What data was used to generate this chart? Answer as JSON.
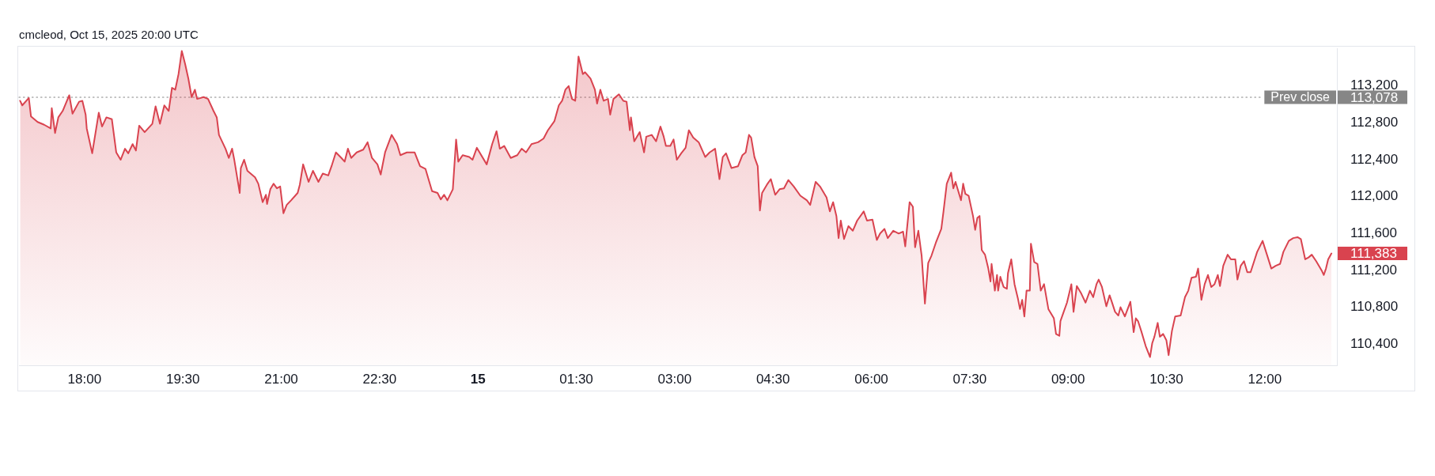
{
  "chart_data": {
    "type": "area",
    "color": "#d9434f",
    "annotations": [
      "cmcleod, Oct 15, 2025 20:00 UTC",
      "113,078",
      {
        "text": "111,383",
        "x": "2025-10-15T13:01",
        "y": 111383
      }
    ],
    "xlim": [
      "2025-10-14T17:00",
      "2025-10-15T13:06"
    ],
    "ylim": [
      110170,
      113610
    ],
    "xticks": [
      {
        "value": "2025-10-14T18:00",
        "label": "18:00"
      },
      {
        "value": "2025-10-14T19:30",
        "label": "19:30"
      },
      {
        "value": "2025-10-14T21:00",
        "label": "21:00"
      },
      {
        "value": "2025-10-14T22:30",
        "label": "22:30"
      },
      {
        "value": "2025-10-15",
        "label": "15"
      },
      {
        "value": "2025-10-15T01:30",
        "label": "01:30"
      },
      {
        "value": "2025-10-15T03:00",
        "label": "03:00"
      },
      {
        "value": "2025-10-15T04:30",
        "label": "04:30"
      },
      {
        "value": "2025-10-15T06:00",
        "label": "06:00"
      },
      {
        "value": "2025-10-15T07:30",
        "label": "07:30"
      },
      {
        "value": "2025-10-15T09:00",
        "label": "09:00"
      },
      {
        "value": "2025-10-15T10:30",
        "label": "10:30"
      },
      {
        "value": "2025-10-15T12:00",
        "label": "12:00"
      }
    ],
    "yticks": [
      {
        "value": 110400,
        "label": "110,400"
      },
      {
        "value": 110800,
        "label": "110,800"
      },
      {
        "value": 111200,
        "label": "111,200"
      },
      {
        "value": 111600,
        "label": "111,600"
      },
      {
        "value": 112000,
        "label": "112,000"
      },
      {
        "value": 112400,
        "label": "112,400"
      },
      {
        "value": 112800,
        "label": "112,800"
      },
      {
        "value": 113200,
        "label": "113,200"
      }
    ],
    "ref_lines": [
      {
        "axis": "y",
        "value": 113078,
        "label": "Prev close",
        "color": "#868686",
        "line_style": "dotted"
      }
    ],
    "x": [
      "2025-10-14T17:01",
      "2025-10-14T17:03",
      "2025-10-14T17:09",
      "2025-10-14T17:11",
      "2025-10-14T17:17",
      "2025-10-14T17:23",
      "2025-10-14T17:29",
      "2025-10-14T17:30",
      "2025-10-14T17:33",
      "2025-10-14T17:36",
      "2025-10-14T17:40",
      "2025-10-14T17:46",
      "2025-10-14T17:49",
      "2025-10-14T17:55",
      "2025-10-14T17:58",
      "2025-10-14T18:01",
      "2025-10-14T18:02",
      "2025-10-14T18:07",
      "2025-10-14T18:13",
      "2025-10-14T18:16",
      "2025-10-14T18:20",
      "2025-10-14T18:25",
      "2025-10-14T18:29",
      "2025-10-14T18:33",
      "2025-10-14T18:37",
      "2025-10-14T18:40",
      "2025-10-14T18:44",
      "2025-10-14T18:47",
      "2025-10-14T18:50",
      "2025-10-14T18:55",
      "2025-10-14T19:02",
      "2025-10-14T19:05",
      "2025-10-14T19:09",
      "2025-10-14T19:13",
      "2025-10-14T19:17",
      "2025-10-14T19:20",
      "2025-10-14T19:23",
      "2025-10-14T19:26",
      "2025-10-14T19:29",
      "2025-10-14T19:32",
      "2025-10-14T19:35",
      "2025-10-14T19:38",
      "2025-10-14T19:41",
      "2025-10-14T19:43",
      "2025-10-14T19:49",
      "2025-10-14T19:53",
      "2025-10-14T19:58",
      "2025-10-14T20:01",
      "2025-10-14T20:03",
      "2025-10-14T20:09",
      "2025-10-14T20:12",
      "2025-10-14T20:15",
      "2025-10-14T20:17",
      "2025-10-14T20:22",
      "2025-10-14T20:23",
      "2025-10-14T20:26",
      "2025-10-14T20:29",
      "2025-10-14T20:36",
      "2025-10-14T20:39",
      "2025-10-14T20:43",
      "2025-10-14T20:46",
      "2025-10-14T20:47",
      "2025-10-14T20:50",
      "2025-10-14T20:53",
      "2025-10-14T20:56",
      "2025-10-14T20:59",
      "2025-10-14T21:02",
      "2025-10-14T21:05",
      "2025-10-14T21:09",
      "2025-10-14T21:15",
      "2025-10-14T21:17",
      "2025-10-14T21:20",
      "2025-10-14T21:25",
      "2025-10-14T21:29",
      "2025-10-14T21:34",
      "2025-10-14T21:38",
      "2025-10-14T21:43",
      "2025-10-14T21:46",
      "2025-10-14T21:50",
      "2025-10-14T21:55",
      "2025-10-14T21:58",
      "2025-10-14T22:01",
      "2025-10-14T22:04",
      "2025-10-14T22:09",
      "2025-10-14T22:15",
      "2025-10-14T22:19",
      "2025-10-14T22:23",
      "2025-10-14T22:28",
      "2025-10-14T22:31",
      "2025-10-14T22:35",
      "2025-10-14T22:41",
      "2025-10-14T22:46",
      "2025-10-14T22:49",
      "2025-10-14T22:55",
      "2025-10-14T23:02",
      "2025-10-14T23:07",
      "2025-10-14T23:12",
      "2025-10-14T23:18",
      "2025-10-14T23:23",
      "2025-10-14T23:26",
      "2025-10-14T23:29",
      "2025-10-14T23:32",
      "2025-10-14T23:37",
      "2025-10-14T23:40",
      "2025-10-14T23:42",
      "2025-10-14T23:46",
      "2025-10-14T23:52",
      "2025-10-14T23:55",
      "2025-10-14T23:59",
      "2025-10-15T00:08",
      "2025-10-15T00:13",
      "2025-10-15T00:17",
      "2025-10-15T00:20",
      "2025-10-15T00:24",
      "2025-10-15T00:30",
      "2025-10-15T00:36",
      "2025-10-15T00:40",
      "2025-10-15T00:44",
      "2025-10-15T00:49",
      "2025-10-15T00:55",
      "2025-10-15T01:00",
      "2025-10-15T01:04",
      "2025-10-15T01:10",
      "2025-10-15T01:14",
      "2025-10-15T01:17",
      "2025-10-15T01:20",
      "2025-10-15T01:23",
      "2025-10-15T01:26",
      "2025-10-15T01:29",
      "2025-10-15T01:32",
      "2025-10-15T01:36",
      "2025-10-15T01:38",
      "2025-10-15T01:43",
      "2025-10-15T01:47",
      "2025-10-15T01:49",
      "2025-10-15T01:52",
      "2025-10-15T01:55",
      "2025-10-15T01:59",
      "2025-10-15T02:01",
      "2025-10-15T02:04",
      "2025-10-15T02:09",
      "2025-10-15T02:13",
      "2025-10-15T02:16",
      "2025-10-15T02:19",
      "2025-10-15T02:20",
      "2025-10-15T02:23",
      "2025-10-15T02:28",
      "2025-10-15T02:32",
      "2025-10-15T02:34",
      "2025-10-15T02:39",
      "2025-10-15T02:43",
      "2025-10-15T02:47",
      "2025-10-15T02:50",
      "2025-10-15T02:52",
      "2025-10-15T02:56",
      "2025-10-15T02:59",
      "2025-10-15T03:02",
      "2025-10-15T03:06",
      "2025-10-15T03:10",
      "2025-10-15T03:13",
      "2025-10-15T03:17",
      "2025-10-15T03:22",
      "2025-10-15T03:28",
      "2025-10-15T03:32",
      "2025-10-15T03:37",
      "2025-10-15T03:41",
      "2025-10-15T03:44",
      "2025-10-15T03:47",
      "2025-10-15T03:52",
      "2025-10-15T03:58",
      "2025-10-15T04:02",
      "2025-10-15T04:05",
      "2025-10-15T04:08",
      "2025-10-15T04:10",
      "2025-10-15T04:13",
      "2025-10-15T04:16",
      "2025-10-15T04:18",
      "2025-10-15T04:20",
      "2025-10-15T04:25",
      "2025-10-15T04:28",
      "2025-10-15T04:32",
      "2025-10-15T04:36",
      "2025-10-15T04:40",
      "2025-10-15T04:44",
      "2025-10-15T04:49",
      "2025-10-15T04:55",
      "2025-10-15T05:01",
      "2025-10-15T05:04",
      "2025-10-15T05:09",
      "2025-10-15T05:13",
      "2025-10-15T05:19",
      "2025-10-15T05:22",
      "2025-10-15T05:25",
      "2025-10-15T05:28",
      "2025-10-15T05:30",
      "2025-10-15T05:32",
      "2025-10-15T05:35",
      "2025-10-15T05:39",
      "2025-10-15T05:43",
      "2025-10-15T05:47",
      "2025-10-15T05:53",
      "2025-10-15T05:56",
      "2025-10-15T06:01",
      "2025-10-15T06:05",
      "2025-10-15T06:08",
      "2025-10-15T06:12",
      "2025-10-15T06:15",
      "2025-10-15T06:20",
      "2025-10-15T06:25",
      "2025-10-15T06:29",
      "2025-10-15T06:31",
      "2025-10-15T06:35",
      "2025-10-15T06:38",
      "2025-10-15T06:40",
      "2025-10-15T06:43",
      "2025-10-15T06:46",
      "2025-10-15T06:49",
      "2025-10-15T06:52",
      "2025-10-15T06:55",
      "2025-10-15T06:59",
      "2025-10-15T07:04",
      "2025-10-15T07:06",
      "2025-10-15T07:09",
      "2025-10-15T07:13",
      "2025-10-15T07:15",
      "2025-10-15T07:17",
      "2025-10-15T07:22",
      "2025-10-15T07:24",
      "2025-10-15T07:26",
      "2025-10-15T07:29",
      "2025-10-15T07:33",
      "2025-10-15T07:35",
      "2025-10-15T07:37",
      "2025-10-15T07:39",
      "2025-10-15T07:41",
      "2025-10-15T07:44",
      "2025-10-15T07:47",
      "2025-10-15T07:49",
      "2025-10-15T07:50",
      "2025-10-15T07:53",
      "2025-10-15T07:55",
      "2025-10-15T07:56",
      "2025-10-15T07:58",
      "2025-10-15T08:01",
      "2025-10-15T08:04",
      "2025-10-15T08:05",
      "2025-10-15T08:08",
      "2025-10-15T08:11",
      "2025-10-15T08:14",
      "2025-10-15T08:16",
      "2025-10-15T08:18",
      "2025-10-15T08:20",
      "2025-10-15T08:22",
      "2025-10-15T08:25",
      "2025-10-15T08:26",
      "2025-10-15T08:29",
      "2025-10-15T08:32",
      "2025-10-15T08:35",
      "2025-10-15T08:38",
      "2025-10-15T08:42",
      "2025-10-15T08:47",
      "2025-10-15T08:49",
      "2025-10-15T08:52",
      "2025-10-15T08:53",
      "2025-10-15T08:56",
      "2025-10-15T08:59",
      "2025-10-15T09:03",
      "2025-10-15T09:05",
      "2025-10-15T09:08",
      "2025-10-15T09:12",
      "2025-10-15T09:16",
      "2025-10-15T09:20",
      "2025-10-15T09:23",
      "2025-10-15T09:26",
      "2025-10-15T09:28",
      "2025-10-15T09:31",
      "2025-10-15T09:35",
      "2025-10-15T09:38",
      "2025-10-15T09:40",
      "2025-10-15T09:43",
      "2025-10-15T09:46",
      "2025-10-15T09:48",
      "2025-10-15T09:52",
      "2025-10-15T09:57",
      "2025-10-15T10:00",
      "2025-10-15T10:02",
      "2025-10-15T10:04",
      "2025-10-15T10:07",
      "2025-10-15T10:11",
      "2025-10-15T10:15",
      "2025-10-15T10:17",
      "2025-10-15T10:19",
      "2025-10-15T10:22",
      "2025-10-15T10:24",
      "2025-10-15T10:27",
      "2025-10-15T10:30",
      "2025-10-15T10:32",
      "2025-10-15T10:35",
      "2025-10-15T10:38",
      "2025-10-15T10:43",
      "2025-10-15T10:47",
      "2025-10-15T10:50",
      "2025-10-15T10:53",
      "2025-10-15T10:57",
      "2025-10-15T10:59",
      "2025-10-15T11:02",
      "2025-10-15T11:05",
      "2025-10-15T11:08",
      "2025-10-15T11:11",
      "2025-10-15T11:14",
      "2025-10-15T11:17",
      "2025-10-15T11:19",
      "2025-10-15T11:22",
      "2025-10-15T11:26",
      "2025-10-15T11:29",
      "2025-10-15T11:33",
      "2025-10-15T11:35",
      "2025-10-15T11:38",
      "2025-10-15T11:41",
      "2025-10-15T11:44",
      "2025-10-15T11:47",
      "2025-10-15T11:50",
      "2025-10-15T11:53",
      "2025-10-15T11:58",
      "2025-10-15T12:02",
      "2025-10-15T12:06",
      "2025-10-15T12:10",
      "2025-10-15T12:14",
      "2025-10-15T12:17",
      "2025-10-15T12:22",
      "2025-10-15T12:26",
      "2025-10-15T12:30",
      "2025-10-15T12:33",
      "2025-10-15T12:37",
      "2025-10-15T12:40",
      "2025-10-15T12:43",
      "2025-10-15T12:47",
      "2025-10-15T12:52",
      "2025-10-15T12:54",
      "2025-10-15T12:56",
      "2025-10-15T12:58",
      "2025-10-15T13:01"
    ],
    "values": [
      113040,
      112990,
      113070,
      112870,
      112810,
      112780,
      112740,
      112960,
      112690,
      112860,
      112930,
      113100,
      112900,
      113030,
      113040,
      112890,
      112740,
      112470,
      112910,
      112760,
      112860,
      112840,
      112480,
      112400,
      112520,
      112470,
      112570,
      112500,
      112770,
      112700,
      112790,
      112980,
      112790,
      112990,
      112930,
      113180,
      113160,
      113330,
      113580,
      113440,
      113280,
      113080,
      113160,
      113060,
      113080,
      113060,
      112930,
      112860,
      112670,
      112520,
      112420,
      112520,
      112400,
      112040,
      112310,
      112400,
      112280,
      112210,
      112140,
      111940,
      112020,
      111920,
      112080,
      112140,
      112090,
      112110,
      111820,
      111910,
      111960,
      112040,
      112130,
      112350,
      112160,
      112280,
      112160,
      112250,
      112230,
      112330,
      112480,
      112420,
      112380,
      112520,
      112420,
      112480,
      112510,
      112590,
      112420,
      112350,
      112240,
      112480,
      112670,
      112570,
      112450,
      112480,
      112480,
      112330,
      112300,
      112060,
      112040,
      111970,
      112020,
      111960,
      112080,
      112620,
      112380,
      112450,
      112430,
      112400,
      112530,
      112350,
      112570,
      112710,
      112520,
      112550,
      112420,
      112450,
      112520,
      112480,
      112570,
      112590,
      112630,
      112720,
      112820,
      112990,
      113040,
      113160,
      113200,
      113060,
      113040,
      113520,
      113330,
      113350,
      113280,
      113160,
      113010,
      113160,
      113040,
      113060,
      112890,
      113060,
      113110,
      113040,
      113030,
      112720,
      112860,
      112600,
      112700,
      112480,
      112650,
      112670,
      112600,
      112760,
      112650,
      112550,
      112550,
      112620,
      112400,
      112470,
      112530,
      112720,
      112640,
      112590,
      112430,
      112480,
      112520,
      112190,
      112430,
      112470,
      112310,
      112330,
      112450,
      112480,
      112670,
      112640,
      112430,
      112330,
      111850,
      112040,
      112140,
      112190,
      112020,
      112080,
      112090,
      112180,
      112110,
      112010,
      111960,
      111910,
      112160,
      112110,
      111990,
      111840,
      111940,
      111790,
      111550,
      111740,
      111540,
      111680,
      111630,
      111740,
      111840,
      111740,
      111750,
      111530,
      111600,
      111650,
      111550,
      111630,
      111600,
      111620,
      111460,
      111940,
      111890,
      111450,
      111630,
      111360,
      110840,
      111280,
      111360,
      111500,
      111650,
      111840,
      112140,
      112260,
      112090,
      112160,
      111960,
      112140,
      112030,
      112010,
      111790,
      111640,
      111770,
      111790,
      111420,
      111370,
      111220,
      111080,
      111270,
      110980,
      111150,
      110980,
      111130,
      111020,
      111000,
      111170,
      111320,
      111050,
      110900,
      110780,
      110880,
      110700,
      110980,
      110980,
      111490,
      111290,
      111270,
      110980,
      111050,
      110780,
      110680,
      110510,
      110490,
      110650,
      110750,
      110850,
      111050,
      110750,
      111030,
      110950,
      110850,
      110980,
      110910,
      111050,
      111100,
      111020,
      110810,
      110930,
      110860,
      110750,
      110710,
      110800,
      110700,
      110860,
      110530,
      110680,
      110650,
      110540,
      110380,
      110260,
      110410,
      110480,
      110630,
      110480,
      110510,
      110440,
      110280,
      110540,
      110700,
      110710,
      110910,
      110980,
      111120,
      111130,
      111220,
      110880,
      111050,
      111150,
      111020,
      111050,
      111150,
      111030,
      111250,
      111370,
      111320,
      111320,
      111100,
      111250,
      111300,
      111180,
      111180,
      111290,
      111400,
      111520,
      111370,
      111220,
      111250,
      111270,
      111400,
      111520,
      111550,
      111560,
      111540,
      111320,
      111340,
      111370,
      111300,
      111200,
      111150,
      111220,
      111320,
      111383
    ]
  }
}
